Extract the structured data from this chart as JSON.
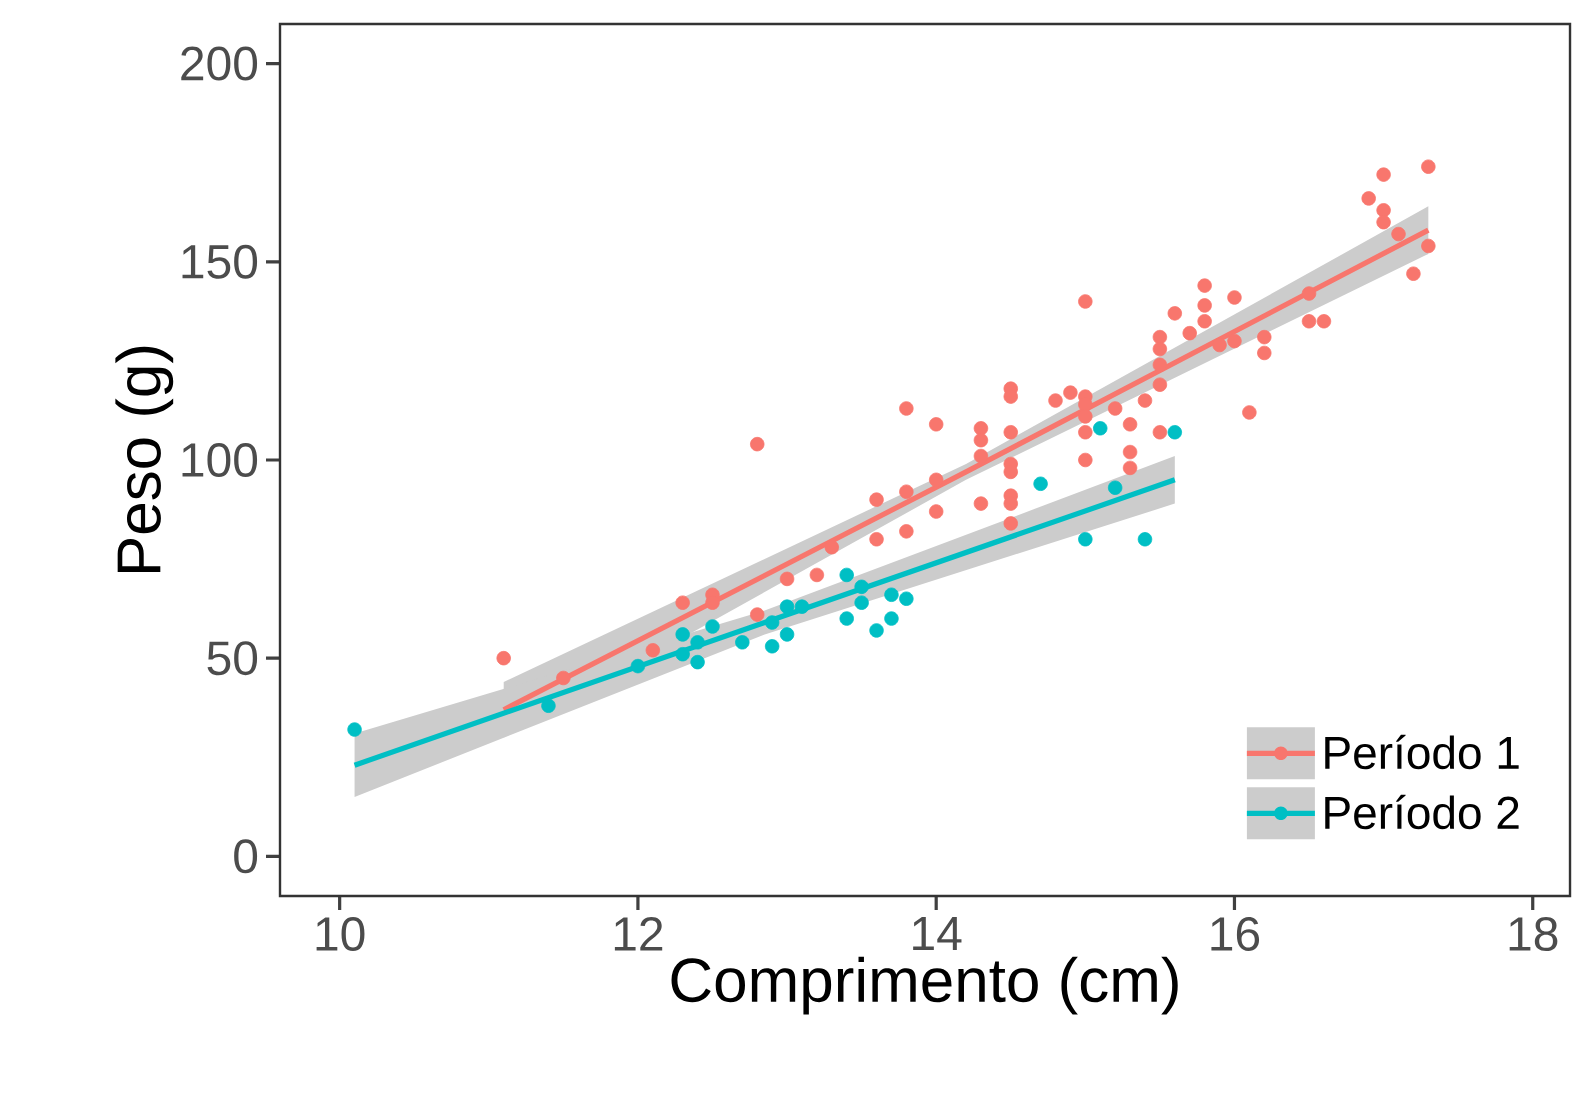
{
  "chart_data": {
    "type": "scatter",
    "xlabel": "Comprimento (cm)",
    "ylabel": "Peso (g)",
    "xlim": [
      9.6,
      18.25
    ],
    "ylim": [
      -10,
      210
    ],
    "xticks": [
      10,
      12,
      14,
      16,
      18
    ],
    "yticks": [
      0,
      50,
      100,
      150,
      200
    ],
    "grid": false,
    "legend": "bottom right",
    "marker": "circle",
    "series": [
      {
        "name": "Período 1",
        "color": "#f8766d",
        "x": [
          11.1,
          11.5,
          12.1,
          12.3,
          12.5,
          12.5,
          12.8,
          12.8,
          13.0,
          13.2,
          13.3,
          13.6,
          13.6,
          13.8,
          13.8,
          13.8,
          14.0,
          14.0,
          14.0,
          14.3,
          14.3,
          14.3,
          14.3,
          14.5,
          14.5,
          14.5,
          14.5,
          14.5,
          14.5,
          14.5,
          14.5,
          14.8,
          14.9,
          15.0,
          15.0,
          15.0,
          15.0,
          15.0,
          15.0,
          15.2,
          15.3,
          15.3,
          15.3,
          15.4,
          15.5,
          15.5,
          15.5,
          15.5,
          15.5,
          15.6,
          15.7,
          15.8,
          15.8,
          15.8,
          15.9,
          16.0,
          16.0,
          16.1,
          16.2,
          16.2,
          16.5,
          16.5,
          16.6,
          16.9,
          17.0,
          17.0,
          17.0,
          17.1,
          17.2,
          17.3,
          17.3
        ],
        "values": [
          50,
          45,
          52,
          64,
          66,
          64,
          104,
          61,
          70,
          71,
          78,
          90,
          80,
          92,
          82,
          113,
          109,
          95,
          87,
          108,
          105,
          101,
          89,
          118,
          116,
          107,
          99,
          97,
          91,
          89,
          84,
          115,
          117,
          140,
          116,
          114,
          111,
          107,
          100,
          113,
          109,
          102,
          98,
          115,
          107,
          119,
          131,
          128,
          124,
          137,
          132,
          144,
          139,
          135,
          129,
          141,
          130,
          112,
          131,
          127,
          142,
          135,
          135,
          166,
          172,
          163,
          160,
          157,
          147,
          174,
          154
        ]
      },
      {
        "name": "Período 2",
        "color": "#00bfc4",
        "x": [
          10.1,
          11.4,
          12.0,
          12.3,
          12.3,
          12.4,
          12.4,
          12.5,
          12.7,
          12.9,
          12.9,
          13.0,
          13.0,
          13.1,
          13.4,
          13.4,
          13.5,
          13.5,
          13.6,
          13.7,
          13.7,
          13.8,
          14.7,
          15.0,
          15.1,
          15.2,
          15.4,
          15.6
        ],
        "values": [
          32,
          38,
          48,
          56,
          51,
          54,
          49,
          58,
          54,
          53,
          59,
          63,
          56,
          63,
          71,
          60,
          68,
          64,
          57,
          66,
          60,
          65,
          94,
          80,
          108,
          93,
          80,
          107
        ]
      },
      {
        "type": "line",
        "marker": "none",
        "color": "#f8766d",
        "x": [
          11.1,
          14.2,
          17.3
        ],
        "values": [
          37,
          97,
          158
        ],
        "lower": [
          30,
          95,
          152
        ],
        "upper": [
          44,
          99,
          164
        ]
      },
      {
        "type": "line",
        "marker": "none",
        "color": "#00bfc4",
        "x": [
          10.1,
          12.85,
          15.6
        ],
        "values": [
          23,
          59,
          95
        ],
        "lower": [
          15,
          56,
          89
        ],
        "upper": [
          31,
          62,
          101
        ]
      }
    ]
  }
}
